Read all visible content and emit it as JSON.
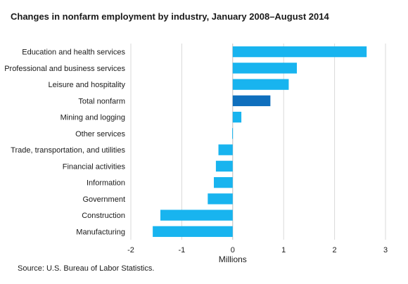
{
  "title": "Changes in nonfarm employment by industry, January 2008–August 2014",
  "source": "Source: U.S. Bureau of Labor Statistics.",
  "colors": {
    "bar": "#18b4ef",
    "highlight": "#0f6fbd",
    "grid": "#d9d9d9",
    "axis": "#bfbfbf"
  },
  "chart_data": {
    "type": "bar",
    "orientation": "horizontal",
    "title": "Changes in nonfarm employment by industry, January 2008–August 2014",
    "xlabel": "Millions",
    "ylabel": "",
    "xlim": [
      -2,
      3
    ],
    "xticks": [
      -2,
      -1,
      0,
      1,
      2,
      3
    ],
    "xtick_labels": [
      "-2",
      "-1",
      "0",
      "1",
      "2",
      "3"
    ],
    "grid": "vertical",
    "legend": "none",
    "categories": [
      "Education and health services",
      "Professional and business services",
      "Leisure and hospitality",
      "Total nonfarm",
      "Mining and logging",
      "Other services",
      "Trade, transportation, and utilities",
      "Financial activities",
      "Information",
      "Government",
      "Construction",
      "Manufacturing"
    ],
    "values": [
      2.63,
      1.26,
      1.1,
      0.74,
      0.17,
      -0.01,
      -0.28,
      -0.33,
      -0.37,
      -0.49,
      -1.42,
      -1.57
    ],
    "highlight": [
      "Total nonfarm"
    ]
  }
}
